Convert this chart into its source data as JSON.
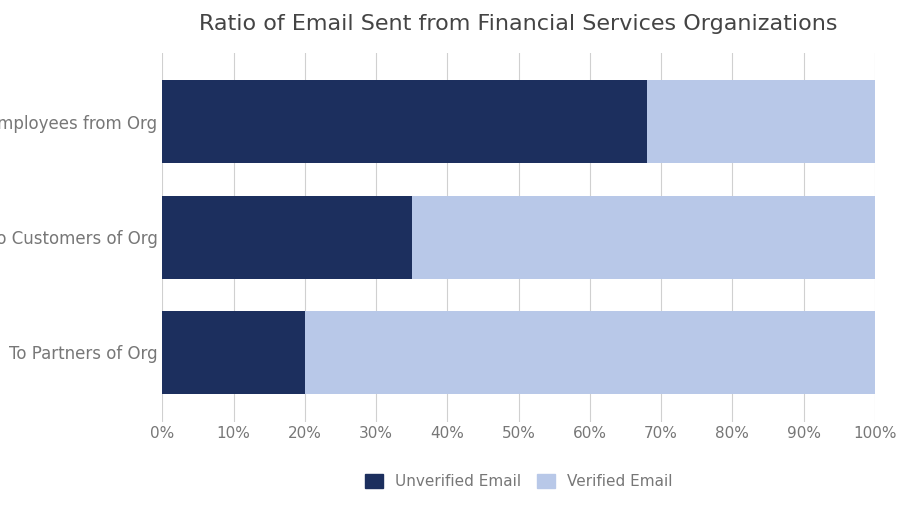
{
  "title": "Ratio of Email Sent from Financial Services Organizations",
  "categories": [
    "To Partners of Org",
    "To Customers of Org",
    "To Employees from Org"
  ],
  "unverified": [
    0.2,
    0.35,
    0.68
  ],
  "verified": [
    0.8,
    0.65,
    0.32
  ],
  "unverified_color": "#1c2f5e",
  "verified_color": "#b8c8e8",
  "background_color": "#ffffff",
  "grid_color": "#d0d0d0",
  "xticks": [
    0.0,
    0.1,
    0.2,
    0.3,
    0.4,
    0.5,
    0.6,
    0.7,
    0.8,
    0.9,
    1.0
  ],
  "xtick_labels": [
    "0%",
    "10%",
    "20%",
    "30%",
    "40%",
    "50%",
    "60%",
    "70%",
    "80%",
    "90%",
    "100%"
  ],
  "legend_unverified": "Unverified Email",
  "legend_verified": "Verified Email",
  "title_fontsize": 16,
  "tick_fontsize": 11,
  "label_fontsize": 12,
  "legend_fontsize": 11,
  "bar_height": 0.72,
  "title_color": "#444444",
  "tick_color": "#777777",
  "label_color": "#777777"
}
